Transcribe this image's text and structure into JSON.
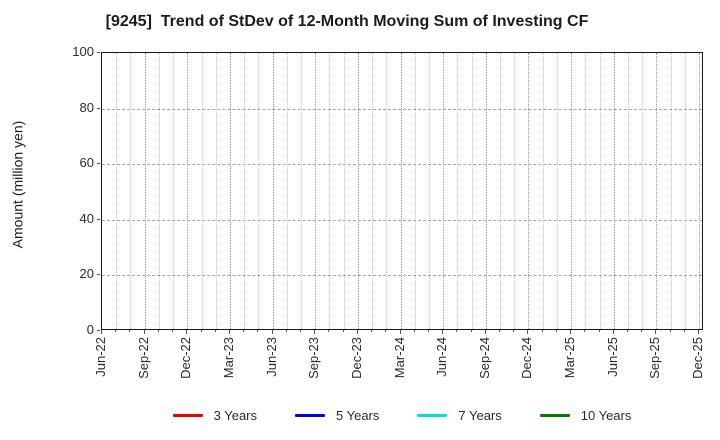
{
  "chart_data": {
    "type": "line",
    "title": "[9245]  Trend of StDev of 12-Month Moving Sum of Investing CF",
    "xlabel": "",
    "ylabel": "Amount (million yen)",
    "ylim": [
      0,
      100
    ],
    "yticks": [
      0,
      20,
      40,
      60,
      80,
      100
    ],
    "x_tick_labels": [
      "Jun-22",
      "Sep-22",
      "Dec-22",
      "Mar-23",
      "Jun-23",
      "Sep-23",
      "Dec-23",
      "Mar-24",
      "Jun-24",
      "Sep-24",
      "Dec-24",
      "Mar-25",
      "Jun-25",
      "Sep-25",
      "Dec-25"
    ],
    "months_total": 43,
    "major_tick_interval_months": 3,
    "minor_gridline_interval_months": 1,
    "grid": "on",
    "legend_position": "bottom-center",
    "series": [
      {
        "name": "3 Years",
        "color": "#ee0000",
        "values": []
      },
      {
        "name": "5 Years",
        "color": "#0000ee",
        "values": []
      },
      {
        "name": "7 Years",
        "color": "#00e0e0",
        "values": []
      },
      {
        "name": "10 Years",
        "color": "#008000",
        "values": []
      }
    ]
  },
  "colors": {
    "background": "#ffffff",
    "plot_border": "#1a1a1a",
    "grid_major": "#979797",
    "grid_minor": "#c8c8c8",
    "title_text": "#1c1c1c",
    "tick_text": "#2b2b2b"
  }
}
